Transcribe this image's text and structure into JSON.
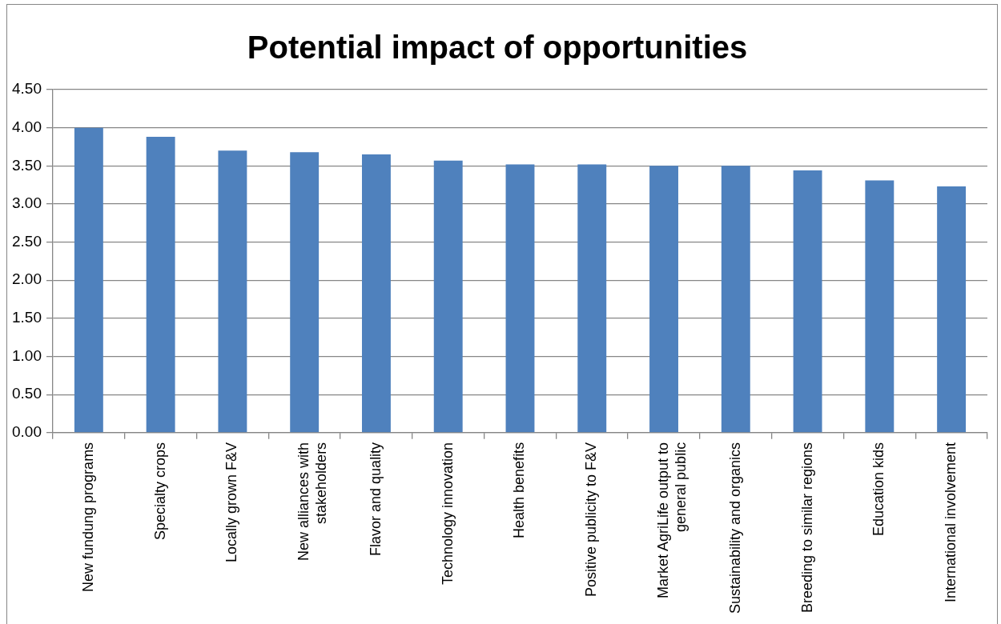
{
  "chart_data": {
    "type": "bar",
    "title": "Potential impact of opportunities",
    "categories": [
      "New fundung programs",
      "Specialty crops",
      "Locally grown F&V",
      "New alliances with stakeholders",
      "Flavor and quality",
      "Technology innovation",
      "Health benefits",
      "Positive publicity to F&V",
      "Market AgriLife output to general public",
      "Sustainability and organics",
      "Breeding to similar regions",
      "Education kids",
      "International involvement"
    ],
    "values": [
      4.0,
      3.88,
      3.7,
      3.68,
      3.65,
      3.57,
      3.52,
      3.52,
      3.5,
      3.5,
      3.44,
      3.31,
      3.23
    ],
    "color": "#4f81bd",
    "ylim": [
      0,
      4.5
    ],
    "yticks": [
      {
        "value": 0,
        "label": "0.00"
      },
      {
        "value": 0.5,
        "label": "0.50"
      },
      {
        "value": 1,
        "label": "1.00"
      },
      {
        "value": 1.5,
        "label": "1.50"
      },
      {
        "value": 2,
        "label": "2.00"
      },
      {
        "value": 2.5,
        "label": "2.50"
      },
      {
        "value": 3,
        "label": "3.00"
      },
      {
        "value": 3.5,
        "label": "3.50"
      },
      {
        "value": 4,
        "label": "4.00"
      },
      {
        "value": 4.5,
        "label": "4.50"
      }
    ],
    "grid": "y",
    "legend": false
  }
}
